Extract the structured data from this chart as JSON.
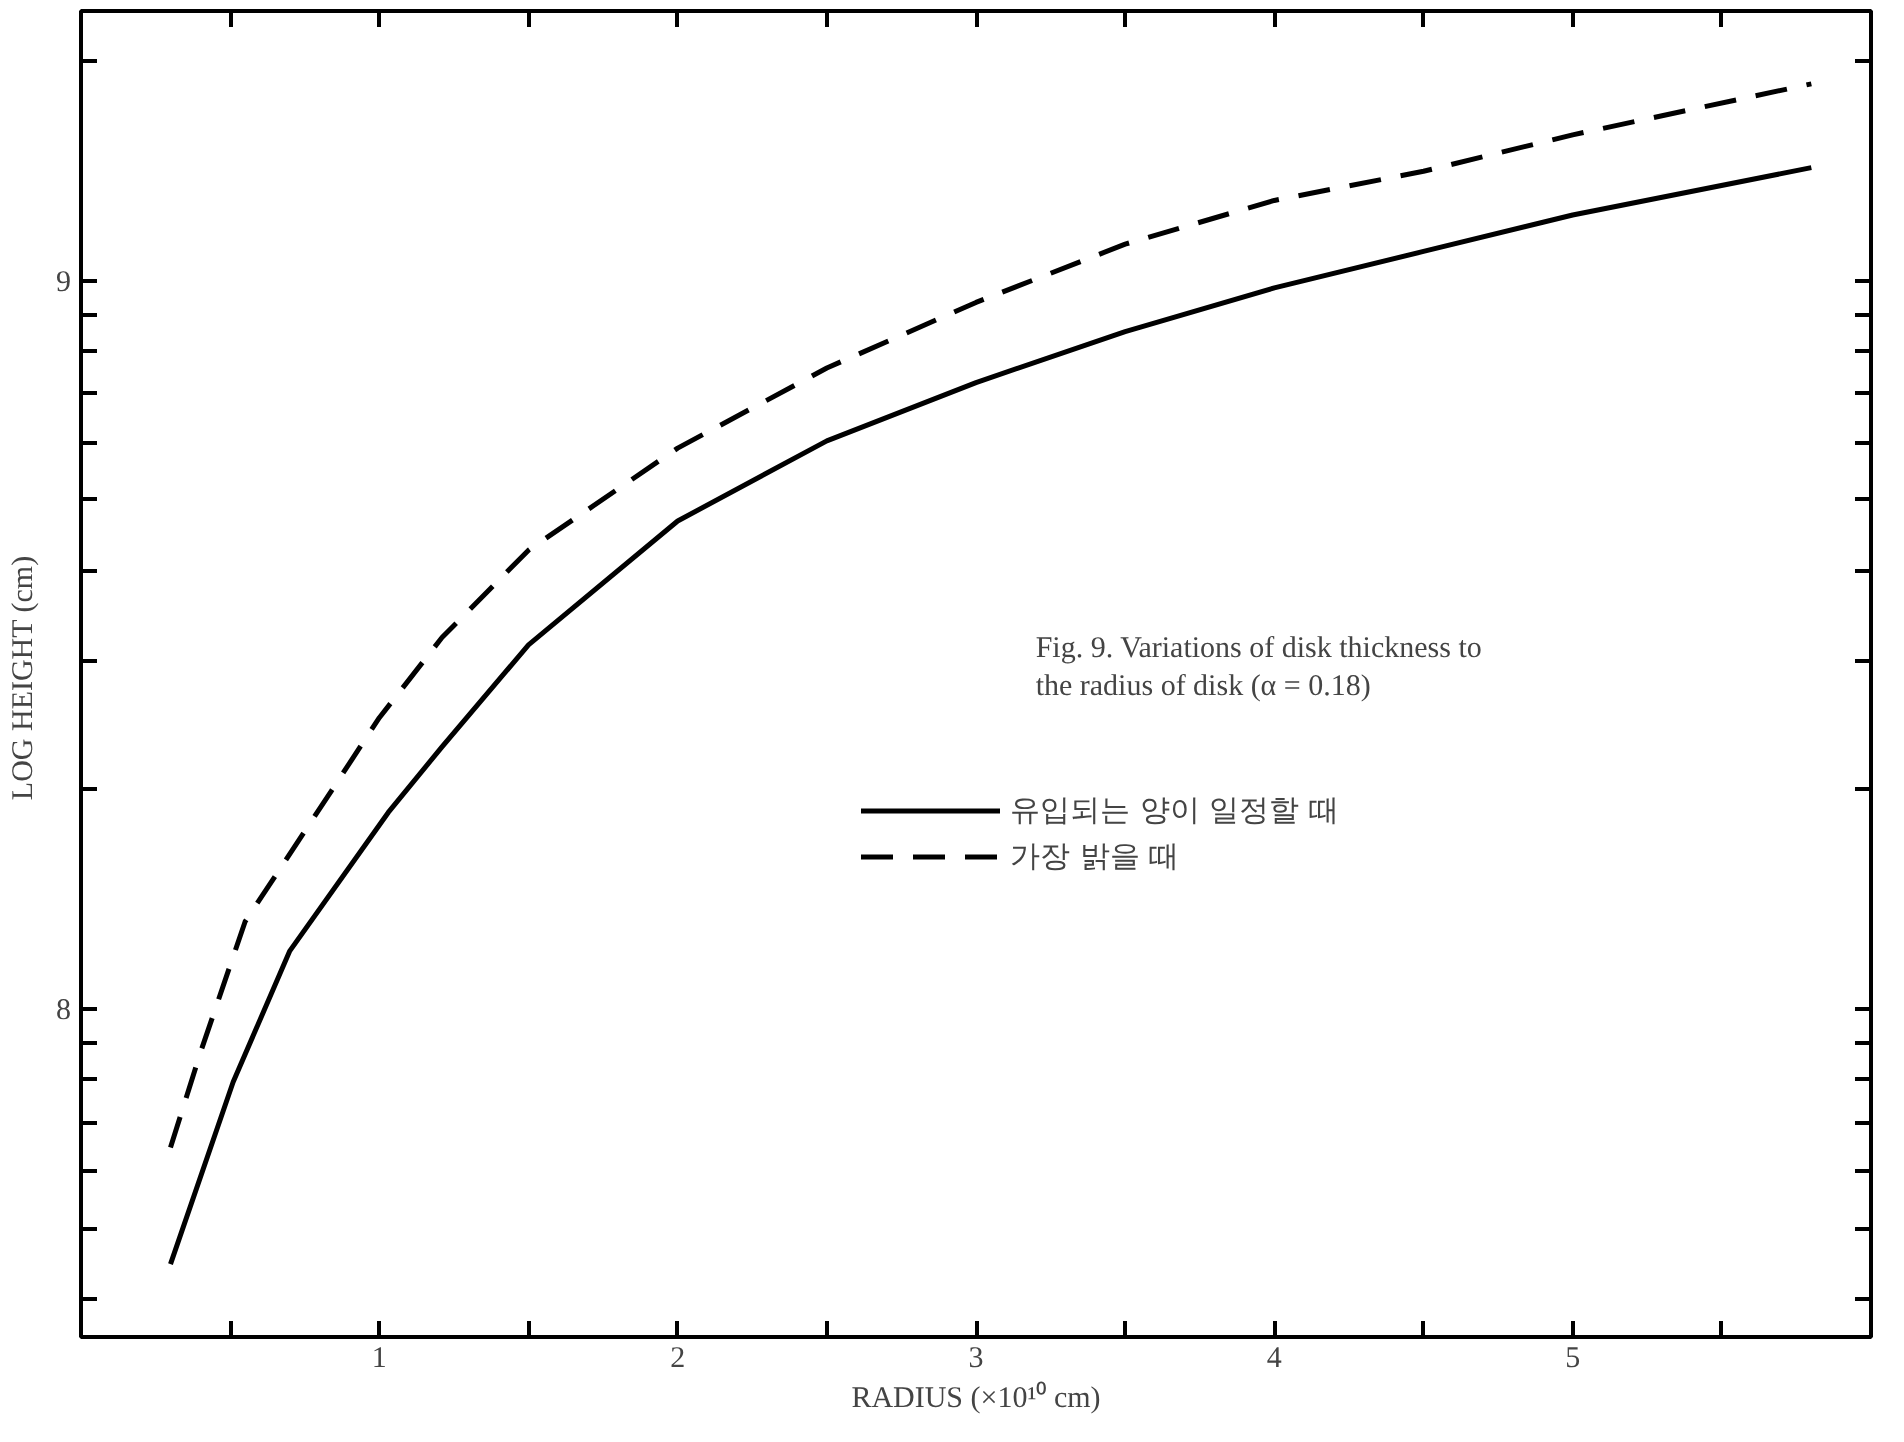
{
  "chart_data": {
    "type": "line",
    "xlabel": "RADIUS (×10¹⁰ cm)",
    "ylabel": "LOG  HEIGHT (cm)",
    "annotations": [
      "Fig. 9.   Variations of disk thickness to\n              the radius of disk (α = 0.18)"
    ],
    "xlim": [
      0,
      6
    ],
    "ylim": [
      7.55,
      9.37
    ],
    "xticks": [
      {
        "value": 0.5,
        "label": null
      },
      1,
      {
        "value": 1.5,
        "label": null
      },
      2,
      {
        "value": 2.5,
        "label": null
      },
      3,
      {
        "value": 3.5,
        "label": null
      },
      4,
      {
        "value": 4.5,
        "label": null
      },
      5,
      {
        "value": 5.5,
        "label": null
      }
    ],
    "yticks": [
      {
        "value": 7.602,
        "label": null
      },
      {
        "value": 7.699,
        "label": null
      },
      {
        "value": 7.778,
        "label": null
      },
      {
        "value": 7.845,
        "label": null
      },
      {
        "value": 7.903,
        "label": null
      },
      {
        "value": 7.954,
        "label": null
      },
      8,
      {
        "value": 8.301,
        "label": null
      },
      {
        "value": 8.477,
        "label": null
      },
      {
        "value": 8.602,
        "label": null
      },
      {
        "value": 8.699,
        "label": null
      },
      {
        "value": 8.778,
        "label": null
      },
      {
        "value": 8.845,
        "label": null
      },
      {
        "value": 8.903,
        "label": null
      },
      {
        "value": 8.954,
        "label": null
      },
      9,
      {
        "value": 9.301,
        "label": null
      }
    ],
    "grid": false,
    "legend": "right",
    "marker": "none",
    "series": [
      {
        "name": "유입되는 양이 일정할 때",
        "color": "#000000",
        "line_style": "solid",
        "x": [
          0.3,
          0.51,
          0.7,
          1.03,
          1.21,
          1.5,
          2.0,
          2.5,
          3.0,
          3.5,
          4.0,
          4.5,
          5.0,
          5.8
        ],
        "values": [
          7.65,
          7.9,
          8.08,
          8.27,
          8.36,
          8.5,
          8.67,
          8.78,
          8.86,
          8.93,
          8.99,
          9.04,
          9.09,
          9.155
        ]
      },
      {
        "name": "가장 밝을 때",
        "color": "#000000",
        "line_style": "dashed",
        "x": [
          0.3,
          0.4,
          0.55,
          0.84,
          1.0,
          1.21,
          1.5,
          2.0,
          2.5,
          3.0,
          3.5,
          4.0,
          4.5,
          5.0,
          5.8
        ],
        "values": [
          7.81,
          7.94,
          8.12,
          8.3,
          8.4,
          8.51,
          8.63,
          8.77,
          8.88,
          8.97,
          9.05,
          9.11,
          9.15,
          9.2,
          9.27
        ]
      }
    ]
  }
}
